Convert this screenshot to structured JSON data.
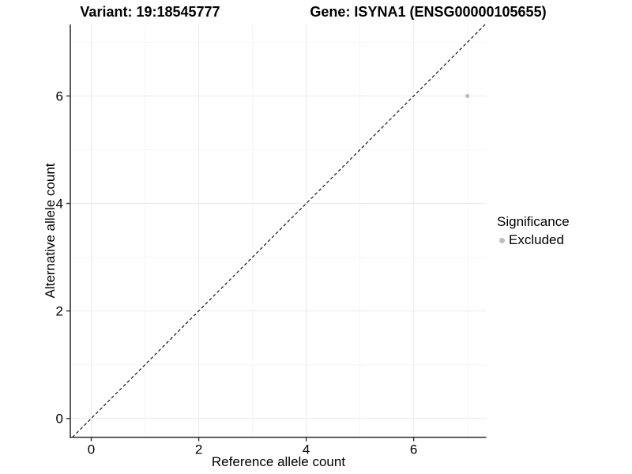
{
  "chart_data": {
    "type": "scatter",
    "variant_title": "Variant: 19:18545777",
    "gene_title": "Gene: ISYNA1 (ENSG00000105655)",
    "xlabel": "Reference allele count",
    "ylabel": "Alternative allele count",
    "xlim": [
      -0.39,
      7.35
    ],
    "ylim": [
      -0.35,
      7.33
    ],
    "x_ticks": [
      0,
      2,
      4,
      6
    ],
    "y_ticks": [
      0,
      2,
      4,
      6
    ],
    "x_minor": [
      1,
      3,
      5,
      7
    ],
    "y_minor": [
      1,
      3,
      5,
      7
    ],
    "grid": true,
    "series": [
      {
        "name": "Excluded",
        "color": "#bebebe",
        "points": [
          {
            "x": 7,
            "y": 6
          }
        ]
      }
    ],
    "reference_line": {
      "type": "identity",
      "equation": "y = x",
      "style": "dashed",
      "color": "#000000"
    },
    "legend": {
      "title": "Significance",
      "position": "right",
      "items": [
        {
          "label": "Excluded",
          "color": "#bebebe"
        }
      ]
    },
    "colors": {
      "background": "#ffffff",
      "grid_major": "#ebebeb",
      "grid_minor": "#f5f5f5",
      "axis_line": "#333333",
      "tick_mark": "#333333",
      "point": "#bebebe"
    }
  }
}
